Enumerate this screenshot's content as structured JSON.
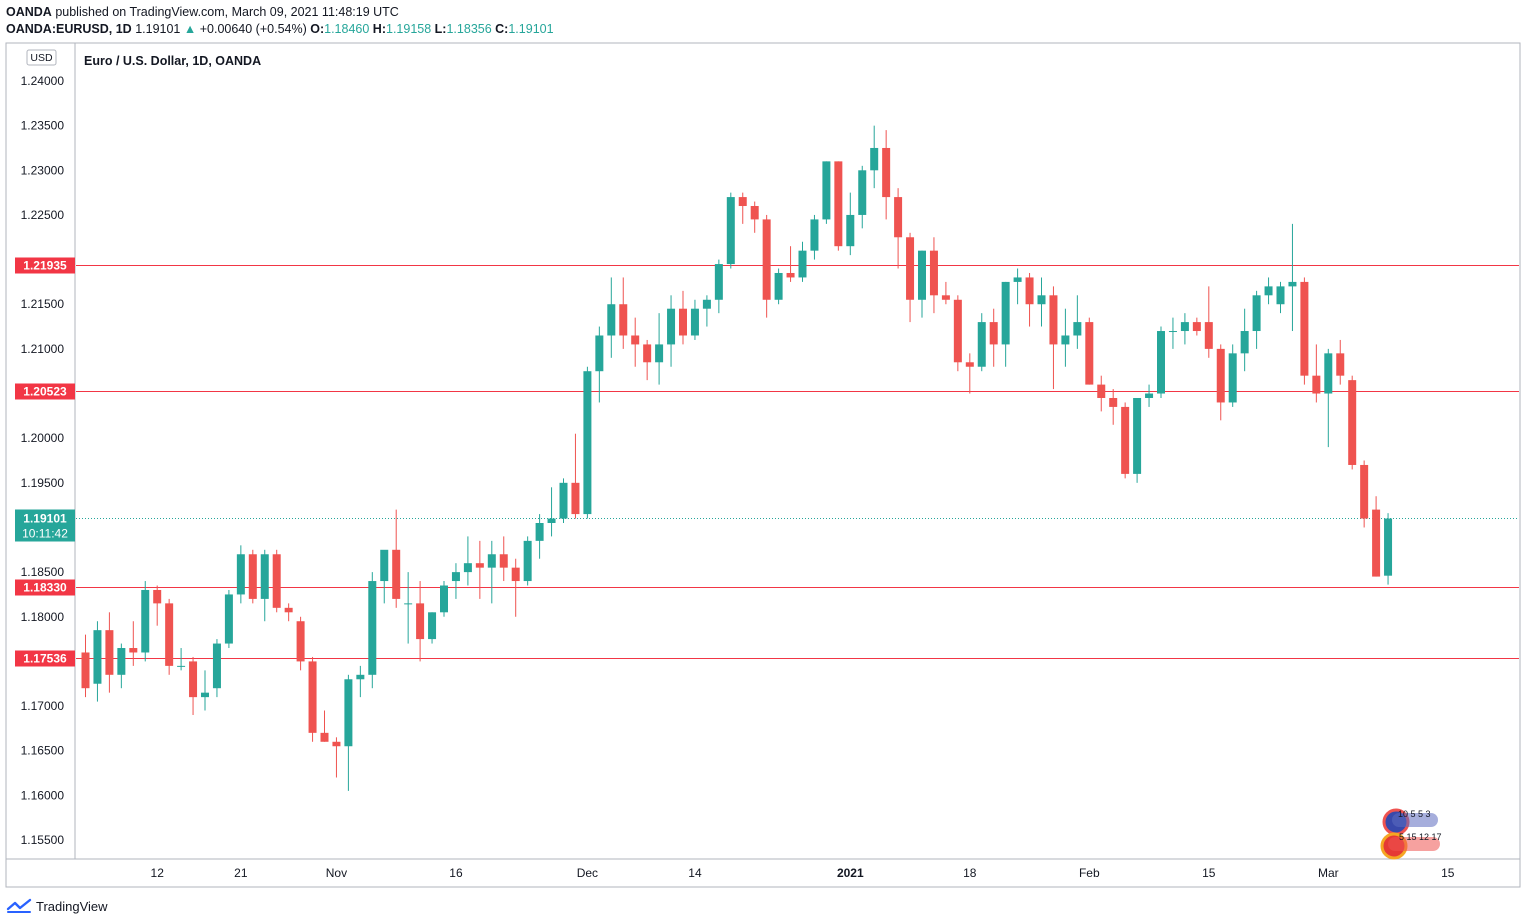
{
  "header": {
    "publisher": "OANDA",
    "published_text": "published on TradingView.com, March 09, 2021 11:48:19 UTC",
    "symbol": "OANDA:EURUSD, 1D",
    "last": "1.19101",
    "change": "+0.00640 (+0.54%)",
    "o_label": "O:",
    "o_val": "1.18460",
    "h_label": "H:",
    "h_val": "1.19158",
    "l_label": "L:",
    "l_val": "1.18356",
    "c_label": "C:",
    "c_val": "1.19101"
  },
  "chart_title": "Euro / U.S. Dollar, 1D, OANDA",
  "currency_badge": "USD",
  "footer_brand": "TradingView",
  "colors": {
    "up": "#26a69a",
    "down": "#ef5350",
    "level": "#f23645",
    "axis_text": "#131722"
  },
  "chart_data": {
    "type": "candlestick",
    "ylim": [
      1.152,
      1.242
    ],
    "y_ticks": [
      "1.24000",
      "1.23500",
      "1.23000",
      "1.22500",
      "1.21500",
      "1.21000",
      "1.20000",
      "1.19500",
      "1.18500",
      "1.18000",
      "1.17000",
      "1.16500",
      "1.16000",
      "1.15500"
    ],
    "x_ticks": [
      {
        "label": "12",
        "i": 6
      },
      {
        "label": "21",
        "i": 13
      },
      {
        "label": "Nov",
        "i": 21
      },
      {
        "label": "16",
        "i": 31
      },
      {
        "label": "Dec",
        "i": 42
      },
      {
        "label": "14",
        "i": 51
      },
      {
        "label": "2021",
        "i": 64
      },
      {
        "label": "18",
        "i": 74
      },
      {
        "label": "Feb",
        "i": 84
      },
      {
        "label": "15",
        "i": 94
      },
      {
        "label": "Mar",
        "i": 104
      },
      {
        "label": "15",
        "i": 114
      }
    ],
    "horizontal_levels": [
      {
        "label": "1.21935",
        "value": 1.21935
      },
      {
        "label": "1.20523",
        "value": 1.20523
      },
      {
        "label": "1.18330",
        "value": 1.1833
      },
      {
        "label": "1.17536",
        "value": 1.17536
      }
    ],
    "last_price": {
      "value": 1.19101,
      "label": "1.19101",
      "countdown": "10:11:42"
    },
    "candles": [
      [
        1.176,
        1.178,
        1.171,
        1.172
      ],
      [
        1.1725,
        1.1795,
        1.1705,
        1.1785
      ],
      [
        1.1785,
        1.1805,
        1.1715,
        1.1735
      ],
      [
        1.1735,
        1.177,
        1.172,
        1.1765
      ],
      [
        1.1765,
        1.1795,
        1.1745,
        1.176
      ],
      [
        1.176,
        1.184,
        1.175,
        1.183
      ],
      [
        1.183,
        1.1835,
        1.179,
        1.1815
      ],
      [
        1.1815,
        1.182,
        1.1735,
        1.1745
      ],
      [
        1.1745,
        1.1765,
        1.174,
        1.1745
      ],
      [
        1.175,
        1.1755,
        1.169,
        1.171
      ],
      [
        1.171,
        1.174,
        1.1695,
        1.1715
      ],
      [
        1.172,
        1.1775,
        1.171,
        1.177
      ],
      [
        1.177,
        1.183,
        1.1765,
        1.1825
      ],
      [
        1.1825,
        1.188,
        1.1815,
        1.187
      ],
      [
        1.187,
        1.1875,
        1.1815,
        1.182
      ],
      [
        1.182,
        1.1875,
        1.1795,
        1.187
      ],
      [
        1.187,
        1.1875,
        1.1805,
        1.181
      ],
      [
        1.181,
        1.1815,
        1.1795,
        1.1805
      ],
      [
        1.1795,
        1.18,
        1.174,
        1.175
      ],
      [
        1.175,
        1.1755,
        1.166,
        1.167
      ],
      [
        1.167,
        1.1695,
        1.166,
        1.166
      ],
      [
        1.166,
        1.1665,
        1.162,
        1.1655
      ],
      [
        1.1655,
        1.1735,
        1.1605,
        1.173
      ],
      [
        1.173,
        1.1745,
        1.171,
        1.1735
      ],
      [
        1.1735,
        1.185,
        1.172,
        1.184
      ],
      [
        1.184,
        1.187,
        1.1815,
        1.1875
      ],
      [
        1.1875,
        1.192,
        1.181,
        1.182
      ],
      [
        1.1815,
        1.185,
        1.177,
        1.1815
      ],
      [
        1.1815,
        1.184,
        1.175,
        1.1775
      ],
      [
        1.1775,
        1.1805,
        1.177,
        1.1805
      ],
      [
        1.1805,
        1.184,
        1.18,
        1.1835
      ],
      [
        1.184,
        1.186,
        1.182,
        1.185
      ],
      [
        1.185,
        1.189,
        1.1835,
        1.186
      ],
      [
        1.186,
        1.1885,
        1.182,
        1.1855
      ],
      [
        1.1855,
        1.1885,
        1.1815,
        1.187
      ],
      [
        1.187,
        1.189,
        1.184,
        1.1855
      ],
      [
        1.1855,
        1.1865,
        1.18,
        1.184
      ],
      [
        1.184,
        1.189,
        1.1835,
        1.1885
      ],
      [
        1.1885,
        1.1915,
        1.1865,
        1.1905
      ],
      [
        1.1905,
        1.1945,
        1.189,
        1.191
      ],
      [
        1.191,
        1.1955,
        1.1905,
        1.195
      ],
      [
        1.195,
        1.2005,
        1.191,
        1.1915
      ],
      [
        1.1915,
        1.208,
        1.191,
        1.2075
      ],
      [
        1.2075,
        1.2125,
        1.204,
        1.2115
      ],
      [
        1.2115,
        1.218,
        1.209,
        1.215
      ],
      [
        1.215,
        1.218,
        1.21,
        1.2115
      ],
      [
        1.2115,
        1.2135,
        1.208,
        1.2105
      ],
      [
        1.2105,
        1.211,
        1.2065,
        1.2085
      ],
      [
        1.2085,
        1.214,
        1.206,
        1.2105
      ],
      [
        1.2105,
        1.216,
        1.208,
        1.2145
      ],
      [
        1.2145,
        1.2165,
        1.2105,
        1.2115
      ],
      [
        1.2115,
        1.2155,
        1.211,
        1.2145
      ],
      [
        1.2145,
        1.216,
        1.2125,
        1.2155
      ],
      [
        1.2155,
        1.22,
        1.214,
        1.2195
      ],
      [
        1.2195,
        1.2275,
        1.219,
        1.227
      ],
      [
        1.227,
        1.2275,
        1.224,
        1.226
      ],
      [
        1.226,
        1.2265,
        1.223,
        1.2245
      ],
      [
        1.2245,
        1.225,
        1.2135,
        1.2155
      ],
      [
        1.2155,
        1.219,
        1.215,
        1.2185
      ],
      [
        1.2185,
        1.2215,
        1.2175,
        1.218
      ],
      [
        1.218,
        1.222,
        1.2175,
        1.221
      ],
      [
        1.221,
        1.225,
        1.22,
        1.2245
      ],
      [
        1.2245,
        1.231,
        1.224,
        1.231
      ],
      [
        1.231,
        1.231,
        1.221,
        1.2215
      ],
      [
        1.2215,
        1.2275,
        1.2205,
        1.225
      ],
      [
        1.225,
        1.2305,
        1.2235,
        1.23
      ],
      [
        1.23,
        1.235,
        1.228,
        1.2325
      ],
      [
        1.2325,
        1.2345,
        1.2245,
        1.227
      ],
      [
        1.227,
        1.228,
        1.219,
        1.2225
      ],
      [
        1.2225,
        1.223,
        1.213,
        1.2155
      ],
      [
        1.2155,
        1.221,
        1.2135,
        1.221
      ],
      [
        1.221,
        1.2225,
        1.214,
        1.216
      ],
      [
        1.216,
        1.2175,
        1.215,
        1.2155
      ],
      [
        1.2155,
        1.216,
        1.2075,
        1.2085
      ],
      [
        1.2085,
        1.2095,
        1.205,
        1.208
      ],
      [
        1.208,
        1.214,
        1.2075,
        1.213
      ],
      [
        1.213,
        1.2145,
        1.208,
        1.2105
      ],
      [
        1.2105,
        1.2175,
        1.208,
        1.2175
      ],
      [
        1.2175,
        1.219,
        1.215,
        1.218
      ],
      [
        1.218,
        1.2185,
        1.2125,
        1.215
      ],
      [
        1.215,
        1.218,
        1.2125,
        1.216
      ],
      [
        1.216,
        1.217,
        1.2055,
        1.2105
      ],
      [
        1.2105,
        1.2145,
        1.208,
        1.2115
      ],
      [
        1.2115,
        1.216,
        1.21,
        1.213
      ],
      [
        1.213,
        1.2135,
        1.206,
        1.206
      ],
      [
        1.206,
        1.207,
        1.203,
        1.2045
      ],
      [
        1.2045,
        1.2055,
        1.2015,
        1.2035
      ],
      [
        1.2035,
        1.204,
        1.1955,
        1.196
      ],
      [
        1.196,
        1.2045,
        1.195,
        1.2045
      ],
      [
        1.2045,
        1.206,
        1.2035,
        1.205
      ],
      [
        1.205,
        1.2125,
        1.2045,
        1.212
      ],
      [
        1.212,
        1.2135,
        1.21,
        1.212
      ],
      [
        1.212,
        1.214,
        1.2105,
        1.213
      ],
      [
        1.213,
        1.2135,
        1.2115,
        1.212
      ],
      [
        1.213,
        1.217,
        1.209,
        1.21
      ],
      [
        1.21,
        1.2105,
        1.202,
        1.204
      ],
      [
        1.204,
        1.2105,
        1.2035,
        1.2095
      ],
      [
        1.2095,
        1.2145,
        1.2075,
        1.212
      ],
      [
        1.212,
        1.2165,
        1.21,
        1.216
      ],
      [
        1.216,
        1.218,
        1.215,
        1.217
      ],
      [
        1.215,
        1.2175,
        1.214,
        1.217
      ],
      [
        1.217,
        1.224,
        1.212,
        1.2175
      ],
      [
        1.2175,
        1.218,
        1.206,
        1.207
      ],
      [
        1.207,
        1.2105,
        1.204,
        1.205
      ],
      [
        1.205,
        1.21,
        1.199,
        1.2095
      ],
      [
        1.2095,
        1.211,
        1.206,
        1.207
      ],
      [
        1.2065,
        1.207,
        1.1965,
        1.197
      ],
      [
        1.197,
        1.1975,
        1.19,
        1.191
      ],
      [
        1.192,
        1.1935,
        1.1845,
        1.1845
      ],
      [
        1.1846,
        1.1916,
        1.1836,
        1.191
      ]
    ]
  },
  "watermark_counts": {
    "row1": "10  5   5   3",
    "row2": "5  15 12 17"
  }
}
